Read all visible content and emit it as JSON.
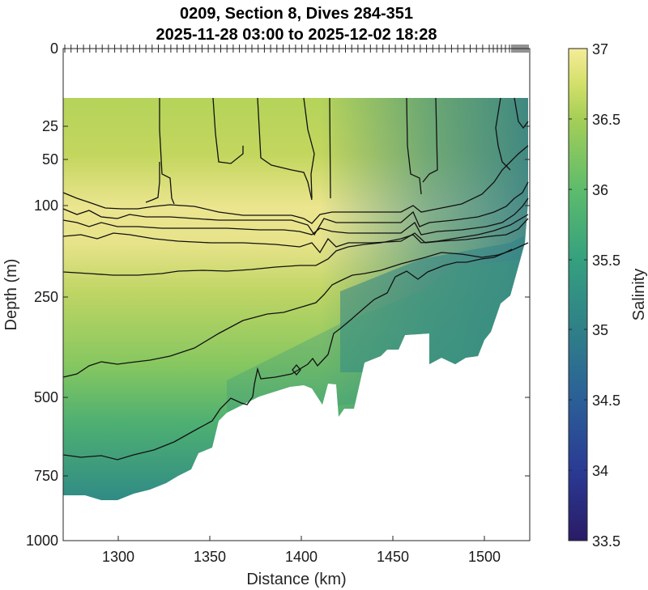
{
  "chart_data": {
    "type": "heatmap",
    "title_line1": "0209, Section 8, Dives 284-351",
    "title_line2": "2025-11-28 03:00 to 2025-12-02 18:28",
    "xlabel": "Distance (km)",
    "ylabel": "Depth (m)",
    "colorbar_label": "Salinity",
    "x_ticks": [
      "1300",
      "1350",
      "1400",
      "1450",
      "1500"
    ],
    "y_ticks": [
      "0",
      "25",
      "50",
      "100",
      "250",
      "500",
      "750",
      "1000"
    ],
    "colorbar_ticks": [
      "37",
      "36.5",
      "36",
      "35.5",
      "35",
      "34.5",
      "34",
      "33.5"
    ],
    "xlim": [
      1270,
      1525
    ],
    "ylim": [
      0,
      1000
    ],
    "clim": [
      33.5,
      37
    ],
    "contour_levels": [
      35.5,
      36,
      36.25,
      36.5,
      36.75
    ],
    "colormap": [
      "#2a1b66",
      "#2a3a93",
      "#2b6097",
      "#2f8088",
      "#35a07f",
      "#5cbb6c",
      "#a7cf57",
      "#d4e06a",
      "#f5ec9a"
    ],
    "approx_surface_salinity": 36.4,
    "approx_max_salinity": 36.85,
    "approx_min_salinity_deep": 35.1
  }
}
